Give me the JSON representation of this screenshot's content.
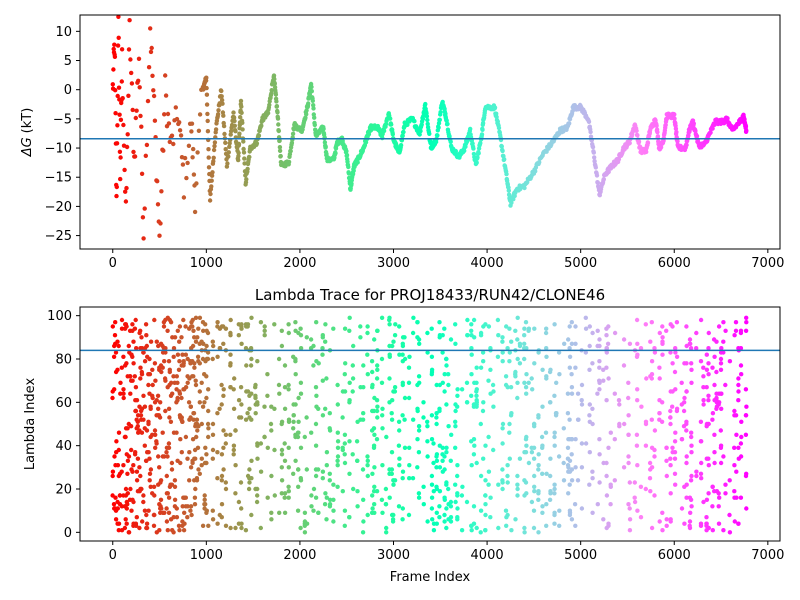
{
  "chart_data": [
    {
      "type": "scatter",
      "title": "",
      "xlabel": "",
      "ylabel": "ΔG (kT)",
      "ylabel_symbol": "ΔG",
      "ylabel_unit": "(kT)",
      "xlim": [
        -350,
        7130
      ],
      "ylim": [
        -27.3,
        12.8
      ],
      "xticks": [
        0,
        1000,
        2000,
        3000,
        4000,
        5000,
        6000,
        7000
      ],
      "yticks": [
        10,
        5,
        0,
        -5,
        -10,
        -15,
        -20,
        -25
      ],
      "hline": -8.4,
      "hline_color": "#1f77b4",
      "colormap": "rainbow",
      "color_by": "frame index",
      "trace": [
        {
          "x": 0,
          "y": 0
        },
        {
          "x": 20,
          "y": 8
        },
        {
          "x": 40,
          "y": -20
        },
        {
          "x": 60,
          "y": 11
        },
        {
          "x": 80,
          "y": -14
        },
        {
          "x": 100,
          "y": 5
        },
        {
          "x": 140,
          "y": -22
        },
        {
          "x": 180,
          "y": 10
        },
        {
          "x": 230,
          "y": -12
        },
        {
          "x": 280,
          "y": 6
        },
        {
          "x": 330,
          "y": -24
        },
        {
          "x": 400,
          "y": 11
        },
        {
          "x": 450,
          "y": -6
        },
        {
          "x": 500,
          "y": -26
        },
        {
          "x": 560,
          "y": 0
        },
        {
          "x": 620,
          "y": -10
        },
        {
          "x": 700,
          "y": -4
        },
        {
          "x": 760,
          "y": -16
        },
        {
          "x": 840,
          "y": -6
        },
        {
          "x": 880,
          "y": -18
        },
        {
          "x": 960,
          "y": 0
        },
        {
          "x": 1000,
          "y": 2
        },
        {
          "x": 1040,
          "y": -19
        },
        {
          "x": 1100,
          "y": -7
        },
        {
          "x": 1160,
          "y": 0
        },
        {
          "x": 1220,
          "y": -13
        },
        {
          "x": 1290,
          "y": -4
        },
        {
          "x": 1340,
          "y": -12
        },
        {
          "x": 1370,
          "y": -2
        },
        {
          "x": 1420,
          "y": -16
        },
        {
          "x": 1470,
          "y": -10
        },
        {
          "x": 1540,
          "y": -9
        },
        {
          "x": 1600,
          "y": -5
        },
        {
          "x": 1660,
          "y": -4
        },
        {
          "x": 1720,
          "y": 2.5
        },
        {
          "x": 1760,
          "y": -4
        },
        {
          "x": 1800,
          "y": -13
        },
        {
          "x": 1880,
          "y": -12.5
        },
        {
          "x": 1940,
          "y": -6
        },
        {
          "x": 2020,
          "y": -7
        },
        {
          "x": 2080,
          "y": -3
        },
        {
          "x": 2120,
          "y": 1
        },
        {
          "x": 2170,
          "y": -8
        },
        {
          "x": 2250,
          "y": -6.5
        },
        {
          "x": 2290,
          "y": -12
        },
        {
          "x": 2360,
          "y": -12
        },
        {
          "x": 2400,
          "y": -9
        },
        {
          "x": 2450,
          "y": -8.5
        },
        {
          "x": 2500,
          "y": -11
        },
        {
          "x": 2540,
          "y": -17
        },
        {
          "x": 2580,
          "y": -13
        },
        {
          "x": 2620,
          "y": -12
        },
        {
          "x": 2680,
          "y": -10
        },
        {
          "x": 2720,
          "y": -8
        },
        {
          "x": 2760,
          "y": -6.5
        },
        {
          "x": 2830,
          "y": -6.5
        },
        {
          "x": 2880,
          "y": -8
        },
        {
          "x": 2950,
          "y": -4
        },
        {
          "x": 3000,
          "y": -8.5
        },
        {
          "x": 3060,
          "y": -11
        },
        {
          "x": 3120,
          "y": -6
        },
        {
          "x": 3200,
          "y": -5
        },
        {
          "x": 3280,
          "y": -7.5
        },
        {
          "x": 3340,
          "y": -2.5
        },
        {
          "x": 3400,
          "y": -10
        },
        {
          "x": 3460,
          "y": -8.5
        },
        {
          "x": 3520,
          "y": -2
        },
        {
          "x": 3560,
          "y": -4.5
        },
        {
          "x": 3620,
          "y": -10
        },
        {
          "x": 3700,
          "y": -11.5
        },
        {
          "x": 3760,
          "y": -10
        },
        {
          "x": 3820,
          "y": -7
        },
        {
          "x": 3880,
          "y": -13
        },
        {
          "x": 3940,
          "y": -8
        },
        {
          "x": 3980,
          "y": -3
        },
        {
          "x": 4080,
          "y": -3
        },
        {
          "x": 4140,
          "y": -8
        },
        {
          "x": 4200,
          "y": -14
        },
        {
          "x": 4250,
          "y": -19.5
        },
        {
          "x": 4320,
          "y": -17
        },
        {
          "x": 4400,
          "y": -16.5
        },
        {
          "x": 4500,
          "y": -14
        },
        {
          "x": 4600,
          "y": -11
        },
        {
          "x": 4700,
          "y": -9
        },
        {
          "x": 4780,
          "y": -7
        },
        {
          "x": 4860,
          "y": -6.5
        },
        {
          "x": 4920,
          "y": -3
        },
        {
          "x": 5000,
          "y": -3
        },
        {
          "x": 5080,
          "y": -5
        },
        {
          "x": 5140,
          "y": -11
        },
        {
          "x": 5200,
          "y": -18
        },
        {
          "x": 5260,
          "y": -14.5
        },
        {
          "x": 5340,
          "y": -13
        },
        {
          "x": 5400,
          "y": -12
        },
        {
          "x": 5460,
          "y": -10
        },
        {
          "x": 5520,
          "y": -9
        },
        {
          "x": 5580,
          "y": -6
        },
        {
          "x": 5640,
          "y": -10.5
        },
        {
          "x": 5700,
          "y": -10.5
        },
        {
          "x": 5740,
          "y": -7
        },
        {
          "x": 5800,
          "y": -5
        },
        {
          "x": 5840,
          "y": -10
        },
        {
          "x": 5880,
          "y": -9
        },
        {
          "x": 5920,
          "y": -4.5
        },
        {
          "x": 6000,
          "y": -4.5
        },
        {
          "x": 6040,
          "y": -10
        },
        {
          "x": 6120,
          "y": -10
        },
        {
          "x": 6160,
          "y": -7
        },
        {
          "x": 6200,
          "y": -5.5
        },
        {
          "x": 6260,
          "y": -9.5
        },
        {
          "x": 6320,
          "y": -9.5
        },
        {
          "x": 6380,
          "y": -7.5
        },
        {
          "x": 6440,
          "y": -5.5
        },
        {
          "x": 6520,
          "y": -5.5
        },
        {
          "x": 6560,
          "y": -5
        },
        {
          "x": 6620,
          "y": -7
        },
        {
          "x": 6700,
          "y": -5.5
        },
        {
          "x": 6740,
          "y": -4.5
        },
        {
          "x": 6770,
          "y": -7
        }
      ]
    },
    {
      "type": "scatter",
      "title": "Lambda Trace for PROJ18433/RUN42/CLONE46",
      "xlabel": "Frame Index",
      "ylabel": "Lambda Index",
      "xlim": [
        -350,
        7130
      ],
      "ylim": [
        -4,
        104
      ],
      "xticks": [
        0,
        1000,
        2000,
        3000,
        4000,
        5000,
        6000,
        7000
      ],
      "yticks": [
        100,
        80,
        60,
        40,
        20,
        0
      ],
      "hline": 84,
      "hline_color": "#1f77b4",
      "colormap": "rainbow",
      "color_by": "frame index",
      "frames": [
        0,
        6770
      ],
      "lambda_range": [
        0,
        99
      ]
    }
  ]
}
